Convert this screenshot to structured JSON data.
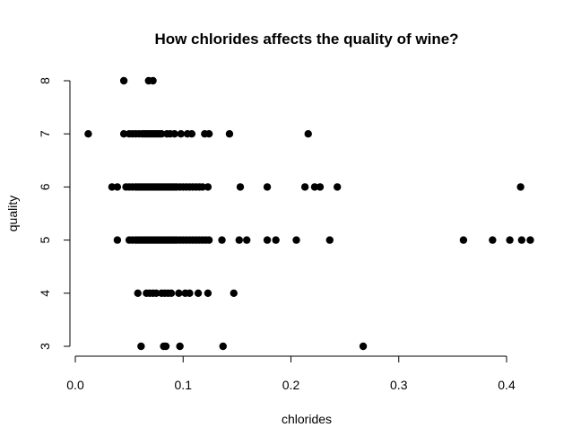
{
  "chart_data": {
    "type": "scatter",
    "title": "How chlorides affects the quality of wine?",
    "xlabel": "chlorides",
    "ylabel": "quality",
    "xlim": [
      0.0,
      0.42
    ],
    "ylim": [
      3,
      8
    ],
    "x_ticks": [
      "0.0",
      "0.1",
      "0.2",
      "0.3",
      "0.4"
    ],
    "y_ticks": [
      "3",
      "4",
      "5",
      "6",
      "7",
      "8"
    ],
    "point_color": "#000000",
    "grid": false,
    "points": [
      {
        "x": 0.045,
        "y": 8
      },
      {
        "x": 0.068,
        "y": 8
      },
      {
        "x": 0.072,
        "y": 8
      },
      {
        "x": 0.012,
        "y": 7
      },
      {
        "x": 0.045,
        "y": 7
      },
      {
        "x": 0.05,
        "y": 7
      },
      {
        "x": 0.053,
        "y": 7
      },
      {
        "x": 0.056,
        "y": 7
      },
      {
        "x": 0.059,
        "y": 7
      },
      {
        "x": 0.062,
        "y": 7
      },
      {
        "x": 0.064,
        "y": 7
      },
      {
        "x": 0.066,
        "y": 7
      },
      {
        "x": 0.068,
        "y": 7
      },
      {
        "x": 0.07,
        "y": 7
      },
      {
        "x": 0.072,
        "y": 7
      },
      {
        "x": 0.074,
        "y": 7
      },
      {
        "x": 0.076,
        "y": 7
      },
      {
        "x": 0.078,
        "y": 7
      },
      {
        "x": 0.08,
        "y": 7
      },
      {
        "x": 0.085,
        "y": 7
      },
      {
        "x": 0.088,
        "y": 7
      },
      {
        "x": 0.092,
        "y": 7
      },
      {
        "x": 0.098,
        "y": 7
      },
      {
        "x": 0.104,
        "y": 7
      },
      {
        "x": 0.108,
        "y": 7
      },
      {
        "x": 0.12,
        "y": 7
      },
      {
        "x": 0.124,
        "y": 7
      },
      {
        "x": 0.143,
        "y": 7
      },
      {
        "x": 0.216,
        "y": 7
      },
      {
        "x": 0.034,
        "y": 6
      },
      {
        "x": 0.039,
        "y": 6
      },
      {
        "x": 0.047,
        "y": 6
      },
      {
        "x": 0.05,
        "y": 6
      },
      {
        "x": 0.053,
        "y": 6
      },
      {
        "x": 0.056,
        "y": 6
      },
      {
        "x": 0.058,
        "y": 6
      },
      {
        "x": 0.06,
        "y": 6
      },
      {
        "x": 0.062,
        "y": 6
      },
      {
        "x": 0.064,
        "y": 6
      },
      {
        "x": 0.066,
        "y": 6
      },
      {
        "x": 0.068,
        "y": 6
      },
      {
        "x": 0.07,
        "y": 6
      },
      {
        "x": 0.072,
        "y": 6
      },
      {
        "x": 0.074,
        "y": 6
      },
      {
        "x": 0.076,
        "y": 6
      },
      {
        "x": 0.078,
        "y": 6
      },
      {
        "x": 0.08,
        "y": 6
      },
      {
        "x": 0.082,
        "y": 6
      },
      {
        "x": 0.084,
        "y": 6
      },
      {
        "x": 0.086,
        "y": 6
      },
      {
        "x": 0.088,
        "y": 6
      },
      {
        "x": 0.09,
        "y": 6
      },
      {
        "x": 0.092,
        "y": 6
      },
      {
        "x": 0.094,
        "y": 6
      },
      {
        "x": 0.097,
        "y": 6
      },
      {
        "x": 0.1,
        "y": 6
      },
      {
        "x": 0.103,
        "y": 6
      },
      {
        "x": 0.106,
        "y": 6
      },
      {
        "x": 0.109,
        "y": 6
      },
      {
        "x": 0.112,
        "y": 6
      },
      {
        "x": 0.115,
        "y": 6
      },
      {
        "x": 0.118,
        "y": 6
      },
      {
        "x": 0.123,
        "y": 6
      },
      {
        "x": 0.153,
        "y": 6
      },
      {
        "x": 0.178,
        "y": 6
      },
      {
        "x": 0.213,
        "y": 6
      },
      {
        "x": 0.222,
        "y": 6
      },
      {
        "x": 0.227,
        "y": 6
      },
      {
        "x": 0.243,
        "y": 6
      },
      {
        "x": 0.413,
        "y": 6
      },
      {
        "x": 0.039,
        "y": 5
      },
      {
        "x": 0.05,
        "y": 5
      },
      {
        "x": 0.053,
        "y": 5
      },
      {
        "x": 0.056,
        "y": 5
      },
      {
        "x": 0.058,
        "y": 5
      },
      {
        "x": 0.06,
        "y": 5
      },
      {
        "x": 0.062,
        "y": 5
      },
      {
        "x": 0.064,
        "y": 5
      },
      {
        "x": 0.066,
        "y": 5
      },
      {
        "x": 0.068,
        "y": 5
      },
      {
        "x": 0.07,
        "y": 5
      },
      {
        "x": 0.072,
        "y": 5
      },
      {
        "x": 0.074,
        "y": 5
      },
      {
        "x": 0.076,
        "y": 5
      },
      {
        "x": 0.078,
        "y": 5
      },
      {
        "x": 0.08,
        "y": 5
      },
      {
        "x": 0.082,
        "y": 5
      },
      {
        "x": 0.084,
        "y": 5
      },
      {
        "x": 0.086,
        "y": 5
      },
      {
        "x": 0.088,
        "y": 5
      },
      {
        "x": 0.09,
        "y": 5
      },
      {
        "x": 0.092,
        "y": 5
      },
      {
        "x": 0.094,
        "y": 5
      },
      {
        "x": 0.097,
        "y": 5
      },
      {
        "x": 0.1,
        "y": 5
      },
      {
        "x": 0.103,
        "y": 5
      },
      {
        "x": 0.106,
        "y": 5
      },
      {
        "x": 0.109,
        "y": 5
      },
      {
        "x": 0.112,
        "y": 5
      },
      {
        "x": 0.115,
        "y": 5
      },
      {
        "x": 0.118,
        "y": 5
      },
      {
        "x": 0.121,
        "y": 5
      },
      {
        "x": 0.124,
        "y": 5
      },
      {
        "x": 0.136,
        "y": 5
      },
      {
        "x": 0.152,
        "y": 5
      },
      {
        "x": 0.159,
        "y": 5
      },
      {
        "x": 0.178,
        "y": 5
      },
      {
        "x": 0.186,
        "y": 5
      },
      {
        "x": 0.205,
        "y": 5
      },
      {
        "x": 0.236,
        "y": 5
      },
      {
        "x": 0.36,
        "y": 5
      },
      {
        "x": 0.387,
        "y": 5
      },
      {
        "x": 0.403,
        "y": 5
      },
      {
        "x": 0.414,
        "y": 5
      },
      {
        "x": 0.422,
        "y": 5
      },
      {
        "x": 0.058,
        "y": 4
      },
      {
        "x": 0.066,
        "y": 4
      },
      {
        "x": 0.069,
        "y": 4
      },
      {
        "x": 0.072,
        "y": 4
      },
      {
        "x": 0.075,
        "y": 4
      },
      {
        "x": 0.08,
        "y": 4
      },
      {
        "x": 0.083,
        "y": 4
      },
      {
        "x": 0.086,
        "y": 4
      },
      {
        "x": 0.089,
        "y": 4
      },
      {
        "x": 0.096,
        "y": 4
      },
      {
        "x": 0.102,
        "y": 4
      },
      {
        "x": 0.106,
        "y": 4
      },
      {
        "x": 0.114,
        "y": 4
      },
      {
        "x": 0.123,
        "y": 4
      },
      {
        "x": 0.147,
        "y": 4
      },
      {
        "x": 0.061,
        "y": 3
      },
      {
        "x": 0.082,
        "y": 3
      },
      {
        "x": 0.084,
        "y": 3
      },
      {
        "x": 0.097,
        "y": 3
      },
      {
        "x": 0.137,
        "y": 3
      },
      {
        "x": 0.267,
        "y": 3
      }
    ]
  }
}
